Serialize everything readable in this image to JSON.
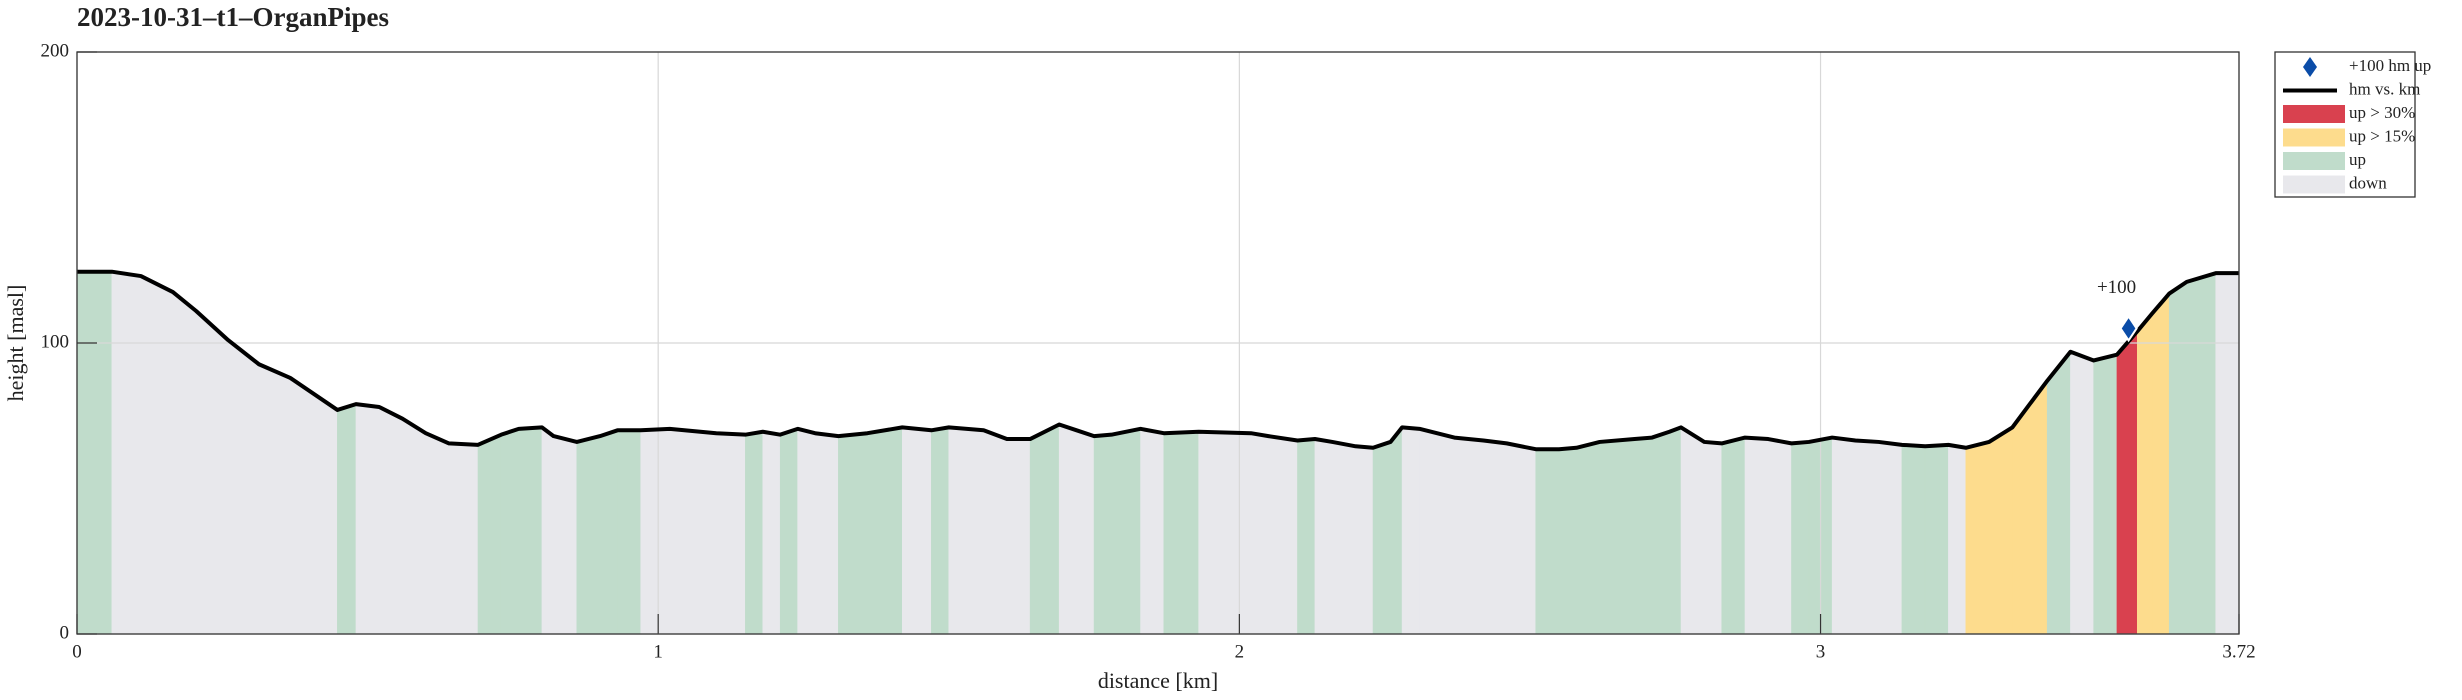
{
  "chart_data": {
    "type": "area",
    "title": "2023-10-31–t1–OrganPipes",
    "xlabel": "distance [km]",
    "ylabel": "height [masl]",
    "x": [
      0,
      0.06,
      0.11,
      0.165,
      0.205,
      0.26,
      0.313,
      0.367,
      0.448,
      0.48,
      0.52,
      0.56,
      0.6,
      0.64,
      0.69,
      0.73,
      0.76,
      0.8,
      0.82,
      0.86,
      0.9,
      0.93,
      0.97,
      1.02,
      1.1,
      1.15,
      1.18,
      1.21,
      1.24,
      1.27,
      1.31,
      1.36,
      1.42,
      1.47,
      1.5,
      1.56,
      1.6,
      1.64,
      1.69,
      1.72,
      1.75,
      1.78,
      1.83,
      1.87,
      1.93,
      2.02,
      2.05,
      2.1,
      2.13,
      2.16,
      2.2,
      2.23,
      2.26,
      2.28,
      2.31,
      2.37,
      2.42,
      2.46,
      2.51,
      2.55,
      2.58,
      2.62,
      2.68,
      2.71,
      2.74,
      2.76,
      2.8,
      2.83,
      2.87,
      2.91,
      2.95,
      2.98,
      3.02,
      3.06,
      3.1,
      3.14,
      3.18,
      3.22,
      3.25,
      3.29,
      3.33,
      3.36,
      3.39,
      3.43,
      3.47,
      3.51,
      3.545,
      3.57,
      3.6,
      3.63,
      3.68,
      3.72
    ],
    "series": [
      {
        "name": "hm vs. km",
        "color": "#000000",
        "values": [
          124.5,
          124.5,
          123,
          117.5,
          111,
          101,
          92.7,
          88,
          77,
          79,
          78,
          74,
          69,
          65.5,
          65,
          68.5,
          70.5,
          71,
          68,
          66,
          68,
          70,
          70,
          70.5,
          69,
          68.5,
          69.5,
          68.5,
          70.5,
          69,
          68,
          69,
          71,
          70,
          71,
          70,
          67,
          67,
          72,
          70,
          68,
          68.5,
          70.5,
          69,
          69.5,
          69,
          68,
          66.5,
          67,
          66,
          64.5,
          64,
          66,
          71,
          70.5,
          67.5,
          66.5,
          65.5,
          63.5,
          63.5,
          64,
          66,
          67,
          67.5,
          69.5,
          71,
          66,
          65.5,
          67.5,
          67,
          65.5,
          66,
          67.5,
          66.5,
          66,
          65,
          64.5,
          65,
          64,
          66,
          71,
          79,
          87,
          97,
          94,
          96,
          104,
          110,
          117,
          121,
          124,
          124
        ]
      }
    ],
    "fill_classes": [
      2,
      3,
      3,
      3,
      3,
      3,
      3,
      3,
      2,
      3,
      3,
      3,
      3,
      3,
      2,
      2,
      2,
      3,
      3,
      2,
      2,
      2,
      3,
      3,
      3,
      2,
      3,
      2,
      3,
      3,
      2,
      2,
      3,
      2,
      3,
      3,
      3,
      2,
      3,
      3,
      2,
      2,
      3,
      2,
      3,
      3,
      3,
      2,
      3,
      3,
      3,
      2,
      2,
      3,
      3,
      3,
      3,
      3,
      2,
      2,
      2,
      2,
      2,
      2,
      2,
      3,
      3,
      2,
      3,
      3,
      2,
      2,
      3,
      3,
      3,
      2,
      2,
      3,
      1,
      1,
      1,
      1,
      2,
      3,
      2,
      0,
      1,
      1,
      2,
      2,
      3
    ],
    "classes": [
      {
        "name": "up > 30%",
        "color": "#d9414f"
      },
      {
        "name": "up > 15%",
        "color": "#fddc8d"
      },
      {
        "name": "up",
        "color": "#c0dccb"
      },
      {
        "name": "down",
        "color": "#e8e8ec"
      }
    ],
    "markers": {
      "name": "+100 hm up",
      "color": "#0a4ca8",
      "x": [
        3.53
      ],
      "values": [
        105
      ],
      "labels": [
        "+100"
      ]
    },
    "xlim": [
      0,
      3.72
    ],
    "xticks": [
      0,
      1,
      2,
      3,
      3.72
    ],
    "ylim": [
      0,
      200
    ],
    "yticks": [
      0,
      100,
      200
    ],
    "grid": true,
    "legend": "outside upper right"
  }
}
